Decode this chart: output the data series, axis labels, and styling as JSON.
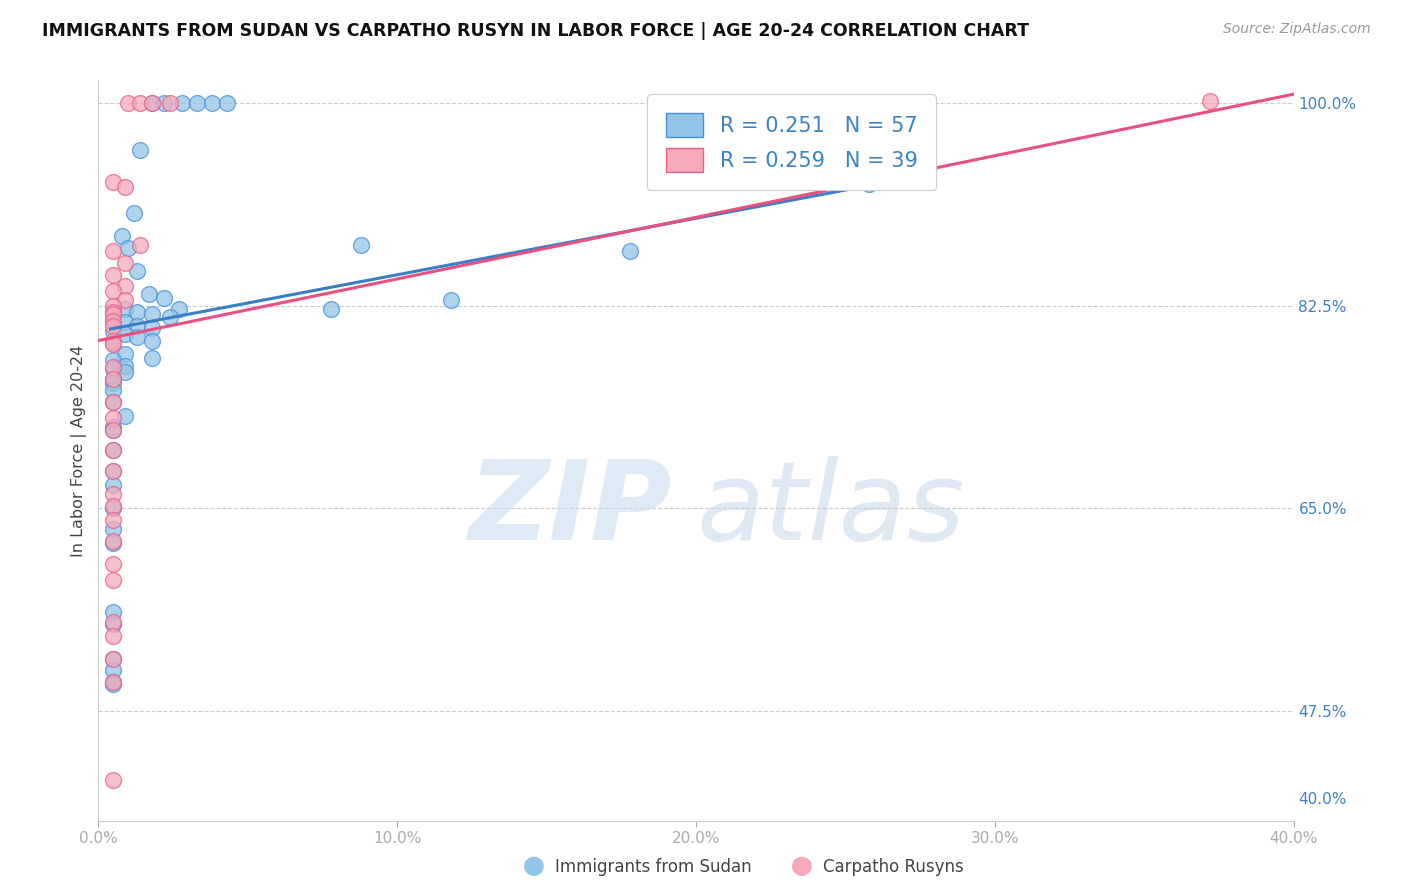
{
  "title": "IMMIGRANTS FROM SUDAN VS CARPATHO RUSYN IN LABOR FORCE | AGE 20-24 CORRELATION CHART",
  "source": "Source: ZipAtlas.com",
  "xlabel_ticks": [
    "0.0%",
    "10.0%",
    "20.0%",
    "30.0%",
    "40.0%"
  ],
  "xlabel_vals": [
    0.0,
    0.1,
    0.2,
    0.3,
    0.4
  ],
  "ylabel_label": "In Labor Force | Age 20-24",
  "ylabel_ticks_right": [
    "100.0%",
    "82.5%",
    "65.0%",
    "47.5%",
    "40.0%"
  ],
  "ylabel_vals": [
    1.0,
    0.825,
    0.65,
    0.475,
    0.4
  ],
  "ylabel_grid_vals": [
    1.0,
    0.825,
    0.65,
    0.475
  ],
  "xlim": [
    0.0,
    0.4
  ],
  "ylim": [
    0.38,
    1.02
  ],
  "sudan_color": "#92C5E8",
  "rusyn_color": "#F4AABB",
  "sudan_edge_color": "#4A90D9",
  "rusyn_edge_color": "#E8608A",
  "sudan_line_color": "#3B7EC8",
  "rusyn_line_color": "#E85080",
  "sudan_R": 0.251,
  "sudan_N": 57,
  "rusyn_R": 0.259,
  "rusyn_N": 39,
  "legend_label_sudan": "R = 0.251   N = 57",
  "legend_label_rusyn": "R = 0.259   N = 39",
  "bottom_legend_sudan": "Immigrants from Sudan",
  "bottom_legend_rusyn": "Carpatho Rusyns",
  "sudan_line_x": [
    0.004,
    0.26
  ],
  "sudan_line_y": [
    0.805,
    0.93
  ],
  "rusyn_line_x": [
    0.0,
    0.4
  ],
  "rusyn_line_y": [
    0.795,
    1.008
  ],
  "sudan_scatter_x": [
    0.018,
    0.022,
    0.028,
    0.033,
    0.038,
    0.043,
    0.014,
    0.012,
    0.008,
    0.01,
    0.013,
    0.017,
    0.022,
    0.027,
    0.009,
    0.013,
    0.018,
    0.024,
    0.005,
    0.009,
    0.013,
    0.018,
    0.005,
    0.009,
    0.013,
    0.018,
    0.005,
    0.009,
    0.018,
    0.005,
    0.009,
    0.005,
    0.009,
    0.005,
    0.078,
    0.088,
    0.005,
    0.005,
    0.005,
    0.009,
    0.005,
    0.005,
    0.005,
    0.005,
    0.005,
    0.005,
    0.005,
    0.005,
    0.118,
    0.178,
    0.258,
    0.005,
    0.005,
    0.005,
    0.005,
    0.005,
    0.005
  ],
  "sudan_scatter_y": [
    1.0,
    1.0,
    1.0,
    1.0,
    1.0,
    1.0,
    0.96,
    0.905,
    0.885,
    0.875,
    0.855,
    0.835,
    0.832,
    0.822,
    0.822,
    0.82,
    0.818,
    0.815,
    0.813,
    0.811,
    0.808,
    0.806,
    0.803,
    0.801,
    0.798,
    0.795,
    0.793,
    0.783,
    0.78,
    0.778,
    0.773,
    0.77,
    0.768,
    0.762,
    0.822,
    0.878,
    0.758,
    0.752,
    0.742,
    0.73,
    0.72,
    0.718,
    0.7,
    0.682,
    0.67,
    0.65,
    0.632,
    0.62,
    0.83,
    0.872,
    0.93,
    0.56,
    0.55,
    0.52,
    0.51,
    0.5,
    0.498
  ],
  "rusyn_scatter_x": [
    0.01,
    0.014,
    0.018,
    0.024,
    0.005,
    0.009,
    0.014,
    0.005,
    0.009,
    0.005,
    0.009,
    0.005,
    0.009,
    0.005,
    0.005,
    0.005,
    0.005,
    0.005,
    0.005,
    0.005,
    0.005,
    0.005,
    0.005,
    0.005,
    0.005,
    0.005,
    0.005,
    0.005,
    0.005,
    0.005,
    0.005,
    0.005,
    0.005,
    0.005,
    0.005,
    0.005,
    0.005,
    0.372,
    0.005
  ],
  "rusyn_scatter_y": [
    1.0,
    1.0,
    1.0,
    1.0,
    0.932,
    0.928,
    0.878,
    0.872,
    0.862,
    0.852,
    0.842,
    0.838,
    0.83,
    0.825,
    0.82,
    0.818,
    0.812,
    0.808,
    0.795,
    0.792,
    0.772,
    0.762,
    0.742,
    0.728,
    0.718,
    0.7,
    0.682,
    0.662,
    0.652,
    0.64,
    0.622,
    0.602,
    0.588,
    0.552,
    0.54,
    0.52,
    0.5,
    1.002,
    0.415
  ]
}
